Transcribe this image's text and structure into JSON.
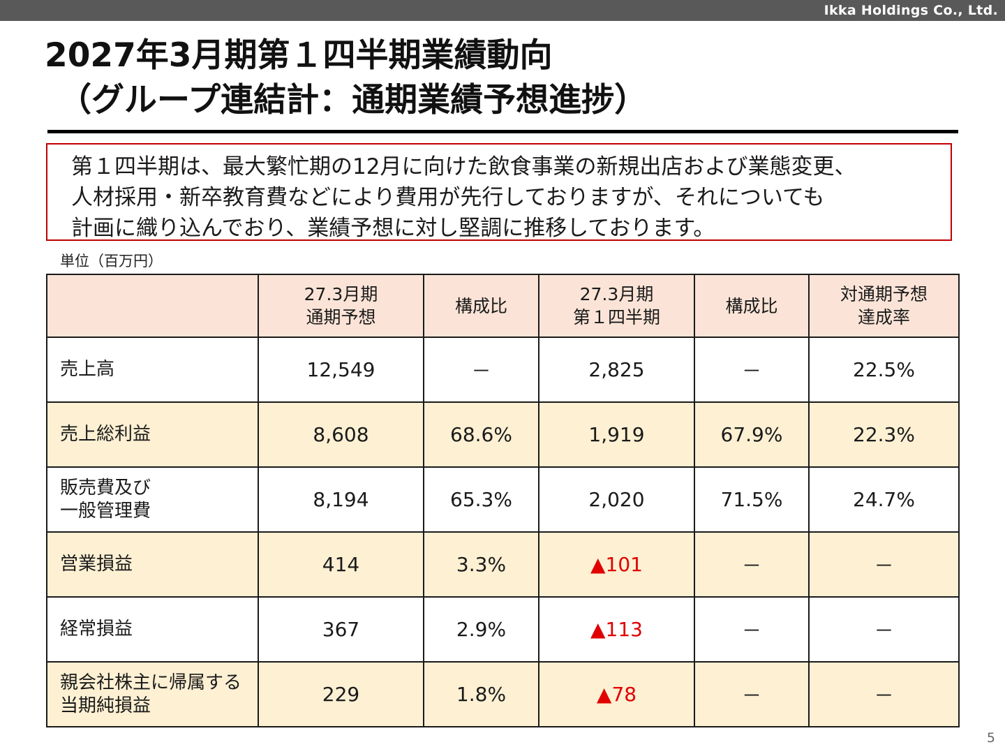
{
  "company": "Ikka Holdings Co., Ltd.",
  "title": {
    "line1": "2027年3月期第１四半期業績動向",
    "line2": "（グループ連結計：通期業績予想進捗）"
  },
  "summary": {
    "lines": [
      "第１四半期は、最大繁忙期の12月に向けた飲食事業の新規出店および業態変更、",
      "人材採用・新卒教育費などにより費用が先行しておりますが、それについても",
      "計画に織り込んでおり、業績予想に対し堅調に推移しております。"
    ]
  },
  "unit": "単位（百万円）",
  "table": {
    "headers": [
      {
        "l1": "",
        "l2": ""
      },
      {
        "l1": "27.3月期",
        "l2": "通期予想"
      },
      {
        "l1": "構成比",
        "l2": ""
      },
      {
        "l1": "27.3月期",
        "l2": "第１四半期"
      },
      {
        "l1": "構成比",
        "l2": ""
      },
      {
        "l1": "対通期予想",
        "l2": "達成率"
      }
    ],
    "rows": [
      {
        "l1": "売上高",
        "l2": "",
        "forecast": "12,549",
        "ratio_f": "－",
        "q1": "2,825",
        "ratio_q": "－",
        "achieve": "22.5%"
      },
      {
        "l1": "売上総利益",
        "l2": "",
        "forecast": "8,608",
        "ratio_f": "68.6%",
        "q1": "1,919",
        "ratio_q": "67.9%",
        "achieve": "22.3%"
      },
      {
        "l1": "販売費及び",
        "l2": "一般管理費",
        "forecast": "8,194",
        "ratio_f": "65.3%",
        "q1": "2,020",
        "ratio_q": "71.5%",
        "achieve": "24.7%"
      },
      {
        "l1": "営業損益",
        "l2": "",
        "forecast": "414",
        "ratio_f": "3.3%",
        "q1": "▲101",
        "ratio_q": "－",
        "achieve": "－"
      },
      {
        "l1": "経常損益",
        "l2": "",
        "forecast": "367",
        "ratio_f": "2.9%",
        "q1": "▲113",
        "ratio_q": "－",
        "achieve": "－"
      },
      {
        "l1": "親会社株主に帰属する",
        "l2": "当期純損益",
        "forecast": "229",
        "ratio_f": "1.8%",
        "q1": "▲78",
        "ratio_q": "－",
        "achieve": "－"
      }
    ]
  },
  "colors": {
    "negative": "#e00000",
    "header_bg": "#fbe4d7",
    "shaded_row": "#fdf0d3",
    "summary_border": "#c00000"
  },
  "page_number": "5"
}
